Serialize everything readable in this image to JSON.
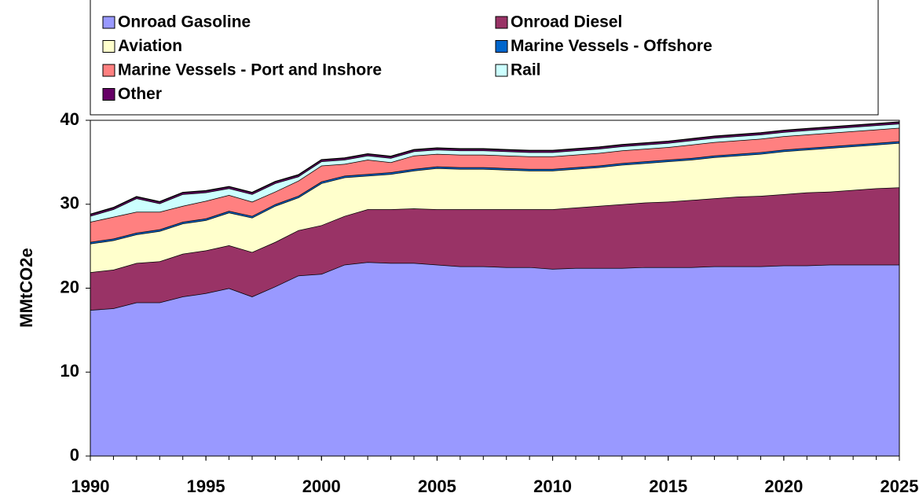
{
  "chart_data": {
    "type": "stacked_area",
    "y_label": "MMtCO2e",
    "x": [
      1990,
      1991,
      1992,
      1993,
      1994,
      1995,
      1996,
      1997,
      1998,
      1999,
      2000,
      2001,
      2002,
      2003,
      2004,
      2005,
      2006,
      2007,
      2008,
      2009,
      2010,
      2011,
      2012,
      2013,
      2014,
      2015,
      2016,
      2017,
      2018,
      2019,
      2020,
      2021,
      2022,
      2023,
      2024,
      2025
    ],
    "xlim": [
      1990,
      2025
    ],
    "xticks": [
      1990,
      1995,
      2000,
      2005,
      2010,
      2015,
      2020,
      2025
    ],
    "ylim": [
      0,
      40
    ],
    "yticks": [
      0,
      10,
      20,
      30,
      40
    ],
    "series": [
      {
        "name": "Onroad Gasoline",
        "color": "#9999ff",
        "values": [
          17.4,
          17.6,
          18.3,
          18.3,
          19.0,
          19.4,
          20.0,
          19.0,
          20.2,
          21.5,
          21.7,
          22.8,
          23.1,
          23.0,
          23.0,
          22.8,
          22.6,
          22.6,
          22.5,
          22.5,
          22.3,
          22.4,
          22.4,
          22.4,
          22.5,
          22.5,
          22.5,
          22.6,
          22.6,
          22.6,
          22.7,
          22.7,
          22.8,
          22.8,
          22.8,
          22.8
        ]
      },
      {
        "name": "Onroad Diesel",
        "color": "#993366",
        "values": [
          4.5,
          4.6,
          4.7,
          4.9,
          5.1,
          5.1,
          5.1,
          5.3,
          5.3,
          5.4,
          5.8,
          5.8,
          6.3,
          6.4,
          6.5,
          6.6,
          6.8,
          6.8,
          6.9,
          6.9,
          7.1,
          7.2,
          7.4,
          7.6,
          7.7,
          7.8,
          8.0,
          8.1,
          8.3,
          8.4,
          8.5,
          8.7,
          8.7,
          8.9,
          9.1,
          9.2
        ]
      },
      {
        "name": "Aviation",
        "color": "#ffffcc",
        "values": [
          3.4,
          3.5,
          3.4,
          3.6,
          3.6,
          3.6,
          3.9,
          4.1,
          4.3,
          3.9,
          5.0,
          4.6,
          4.0,
          4.2,
          4.5,
          4.9,
          4.8,
          4.8,
          4.7,
          4.6,
          4.6,
          4.6,
          4.6,
          4.7,
          4.7,
          4.8,
          4.8,
          4.9,
          4.9,
          5.0,
          5.1,
          5.1,
          5.2,
          5.2,
          5.2,
          5.3
        ]
      },
      {
        "name": "Marine Vessels - Offshore",
        "color": "#0066cc",
        "values": [
          0.2,
          0.2,
          0.2,
          0.2,
          0.2,
          0.2,
          0.2,
          0.2,
          0.2,
          0.2,
          0.2,
          0.2,
          0.2,
          0.2,
          0.2,
          0.2,
          0.2,
          0.2,
          0.2,
          0.2,
          0.2,
          0.2,
          0.2,
          0.2,
          0.2,
          0.2,
          0.2,
          0.2,
          0.2,
          0.2,
          0.2,
          0.2,
          0.2,
          0.2,
          0.2,
          0.2
        ]
      },
      {
        "name": "Marine Vessels - Port and Inshore",
        "color": "#ff8080",
        "values": [
          2.4,
          2.6,
          2.5,
          2.1,
          1.9,
          2.1,
          1.9,
          1.7,
          1.5,
          1.8,
          1.9,
          1.4,
          1.7,
          1.2,
          1.6,
          1.5,
          1.5,
          1.5,
          1.5,
          1.5,
          1.5,
          1.5,
          1.5,
          1.5,
          1.5,
          1.5,
          1.6,
          1.6,
          1.6,
          1.6,
          1.6,
          1.6,
          1.6,
          1.6,
          1.6,
          1.6
        ]
      },
      {
        "name": "Rail",
        "color": "#ccffff",
        "values": [
          0.7,
          0.9,
          1.6,
          1.0,
          1.4,
          1.0,
          0.8,
          0.9,
          1.0,
          0.5,
          0.5,
          0.5,
          0.5,
          0.5,
          0.5,
          0.5,
          0.5,
          0.5,
          0.5,
          0.5,
          0.5,
          0.5,
          0.5,
          0.5,
          0.5,
          0.5,
          0.5,
          0.5,
          0.5,
          0.5,
          0.5,
          0.5,
          0.5,
          0.5,
          0.5,
          0.5
        ]
      },
      {
        "name": "Other",
        "color": "#660066",
        "values": [
          0.2,
          0.2,
          0.2,
          0.2,
          0.2,
          0.2,
          0.2,
          0.2,
          0.2,
          0.2,
          0.2,
          0.2,
          0.2,
          0.2,
          0.2,
          0.2,
          0.2,
          0.2,
          0.2,
          0.2,
          0.2,
          0.2,
          0.2,
          0.2,
          0.2,
          0.2,
          0.2,
          0.2,
          0.2,
          0.2,
          0.2,
          0.2,
          0.2,
          0.2,
          0.2,
          0.2
        ]
      }
    ]
  }
}
